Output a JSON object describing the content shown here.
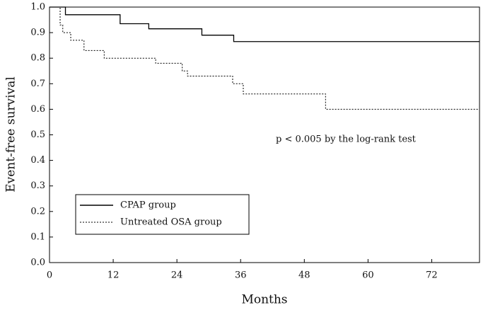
{
  "chart_data": {
    "type": "step",
    "xlabel": "Months",
    "ylabel": "Event-free survival",
    "annotation": "p < 0.005 by the log-rank test",
    "xlim": [
      0,
      81
    ],
    "ylim": [
      0,
      1
    ],
    "xticks": [
      0,
      12,
      24,
      36,
      48,
      60,
      72
    ],
    "yticks": [
      {
        "value": 0,
        "label": "0.0"
      },
      0.1,
      0.2,
      0.3,
      0.4,
      0.5,
      0.6,
      0.7,
      0.8,
      0.9,
      {
        "value": 1,
        "label": "1.0"
      }
    ],
    "series": [
      {
        "name": "CPAP group",
        "color": "#000000",
        "dash": "solid",
        "x": [
          0,
          3,
          13.3,
          18.7,
          28.7,
          34.7,
          81
        ],
        "values": [
          1.0,
          0.97,
          0.935,
          0.915,
          0.89,
          0.865,
          0.865
        ]
      },
      {
        "name": "Untreated OSA group",
        "color": "#000000",
        "dash": "dotted",
        "x": [
          0,
          2,
          2.5,
          4,
          6.5,
          10.3,
          20,
          25,
          26,
          34.5,
          36.5,
          52,
          81
        ],
        "values": [
          1.0,
          0.93,
          0.9,
          0.87,
          0.83,
          0.8,
          0.78,
          0.75,
          0.73,
          0.7,
          0.66,
          0.6,
          0.6
        ]
      }
    ]
  }
}
